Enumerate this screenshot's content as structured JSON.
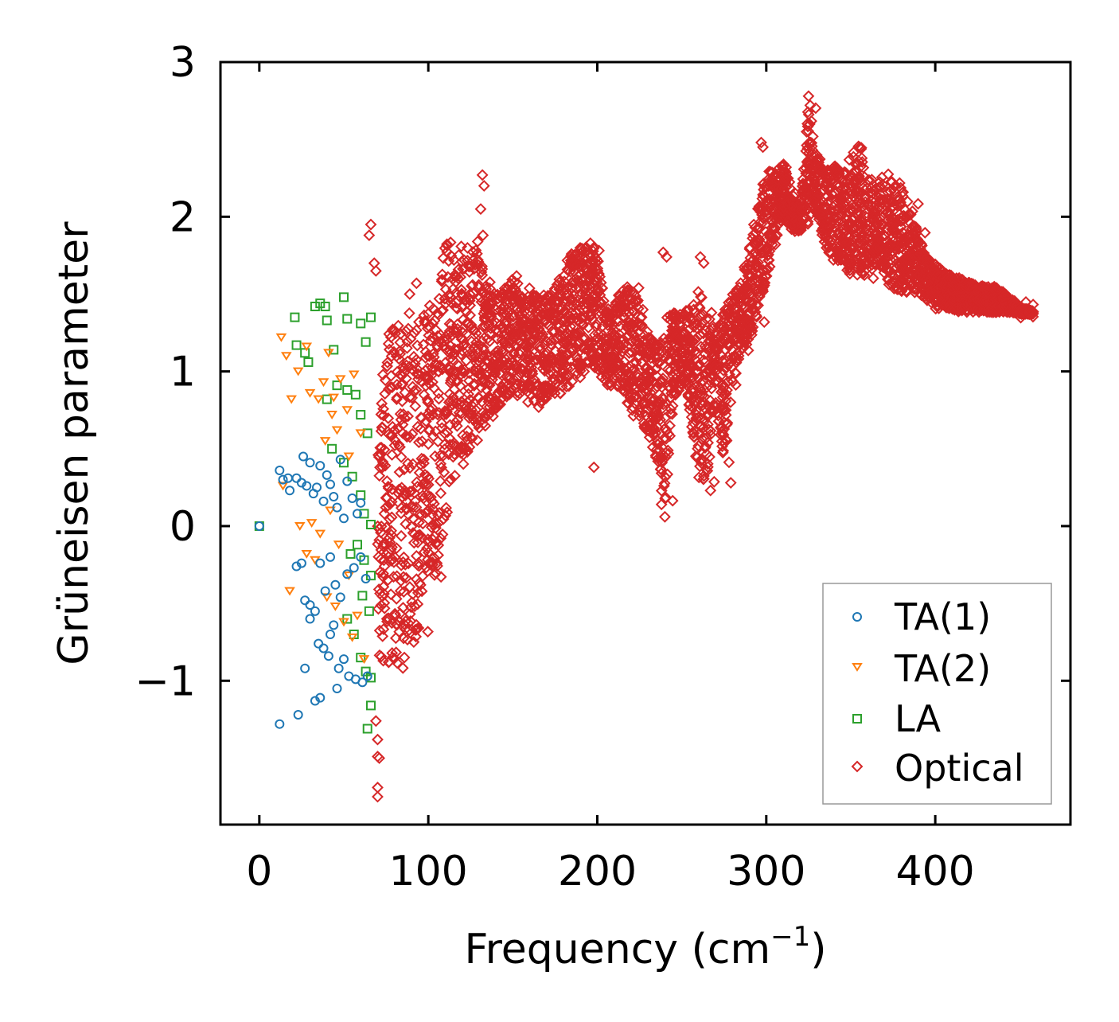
{
  "chart_data": {
    "type": "scatter",
    "title": "",
    "xlabel": "Frequency (cm",
    "xlabel_sup": "−1",
    "xlabel_end": ")",
    "ylabel": "Grüneisen parameter",
    "xlim": [
      -23,
      480
    ],
    "ylim": [
      -1.93,
      3.0
    ],
    "x_ticks": [
      0,
      100,
      200,
      300,
      400
    ],
    "x_tick_labels": [
      "0",
      "100",
      "200",
      "300",
      "400"
    ],
    "y_ticks": [
      -1,
      0,
      1,
      2,
      3
    ],
    "y_tick_labels": [
      "−1",
      "0",
      "1",
      "2",
      "3"
    ],
    "grid": false,
    "legend_position": "bottom-right",
    "series": [
      {
        "name": "TA(1)",
        "marker": "circle",
        "color": "#1f77b4",
        "points": [
          [
            0,
            0
          ],
          [
            12,
            0.36
          ],
          [
            14,
            0.3
          ],
          [
            17,
            0.31
          ],
          [
            18,
            0.23
          ],
          [
            22,
            0.31
          ],
          [
            25,
            0.28
          ],
          [
            26,
            0.45
          ],
          [
            28,
            0.26
          ],
          [
            30,
            0.41
          ],
          [
            32,
            0.21
          ],
          [
            34,
            0.25
          ],
          [
            36,
            0.39
          ],
          [
            38,
            0.16
          ],
          [
            40,
            0.33
          ],
          [
            42,
            0.27
          ],
          [
            44,
            0.19
          ],
          [
            46,
            0.12
          ],
          [
            48,
            0.43
          ],
          [
            50,
            0.05
          ],
          [
            52,
            0.29
          ],
          [
            55,
            0.18
          ],
          [
            58,
            0.08
          ],
          [
            60,
            0.15
          ],
          [
            22,
            -0.26
          ],
          [
            25,
            -0.24
          ],
          [
            27,
            -0.48
          ],
          [
            30,
            -0.51
          ],
          [
            33,
            -0.55
          ],
          [
            36,
            -0.24
          ],
          [
            39,
            -0.42
          ],
          [
            42,
            -0.2
          ],
          [
            45,
            -0.38
          ],
          [
            48,
            -0.46
          ],
          [
            52,
            -0.31
          ],
          [
            56,
            -0.27
          ],
          [
            60,
            -0.2
          ],
          [
            63,
            -0.34
          ],
          [
            35,
            -0.76
          ],
          [
            38,
            -0.79
          ],
          [
            41,
            -0.84
          ],
          [
            44,
            -0.64
          ],
          [
            47,
            -0.92
          ],
          [
            50,
            -0.86
          ],
          [
            53,
            -0.97
          ],
          [
            57,
            -0.99
          ],
          [
            61,
            -1.01
          ],
          [
            64,
            -0.97
          ],
          [
            12,
            -1.28
          ],
          [
            23,
            -1.22
          ],
          [
            27,
            -0.92
          ],
          [
            33,
            -1.13
          ],
          [
            36,
            -1.11
          ],
          [
            46,
            -1.05
          ],
          [
            30,
            -0.6
          ],
          [
            42,
            -0.7
          ]
        ]
      },
      {
        "name": "TA(2)",
        "marker": "triangle-down",
        "color": "#ff7f0e",
        "points": [
          [
            13,
            1.22
          ],
          [
            16,
            1.1
          ],
          [
            19,
            0.82
          ],
          [
            23,
            1.0
          ],
          [
            28,
            1.16
          ],
          [
            30,
            0.86
          ],
          [
            35,
            0.82
          ],
          [
            38,
            0.93
          ],
          [
            41,
            1.12
          ],
          [
            44,
            0.83
          ],
          [
            48,
            0.95
          ],
          [
            52,
            0.75
          ],
          [
            56,
            0.98
          ],
          [
            60,
            0.6
          ],
          [
            14,
            0.26
          ],
          [
            24,
            0.0
          ],
          [
            31,
            0.02
          ],
          [
            36,
            -0.05
          ],
          [
            42,
            0.1
          ],
          [
            47,
            -0.12
          ],
          [
            53,
            -0.32
          ],
          [
            58,
            -0.58
          ],
          [
            18,
            -0.42
          ],
          [
            28,
            -0.18
          ],
          [
            40,
            -0.46
          ],
          [
            45,
            -0.52
          ],
          [
            50,
            -0.62
          ],
          [
            55,
            -0.72
          ],
          [
            62,
            -0.86
          ],
          [
            39,
            0.55
          ],
          [
            46,
            0.62
          ],
          [
            53,
            0.45
          ],
          [
            33,
            -0.22
          ],
          [
            43,
            0.72
          ]
        ]
      },
      {
        "name": "LA",
        "marker": "square",
        "color": "#2ca02c",
        "points": [
          [
            0,
            0
          ],
          [
            21,
            1.35
          ],
          [
            22,
            1.17
          ],
          [
            27,
            1.12
          ],
          [
            29,
            1.06
          ],
          [
            33,
            1.42
          ],
          [
            36,
            1.44
          ],
          [
            39,
            1.42
          ],
          [
            40,
            1.33
          ],
          [
            44,
            1.14
          ],
          [
            50,
            1.48
          ],
          [
            52,
            1.34
          ],
          [
            60,
            1.31
          ],
          [
            63,
            1.19
          ],
          [
            66,
            1.35
          ],
          [
            40,
            0.82
          ],
          [
            46,
            0.91
          ],
          [
            52,
            0.88
          ],
          [
            57,
            0.85
          ],
          [
            60,
            0.72
          ],
          [
            64,
            0.6
          ],
          [
            43,
            0.5
          ],
          [
            50,
            0.41
          ],
          [
            55,
            0.32
          ],
          [
            60,
            0.2
          ],
          [
            62,
            0.08
          ],
          [
            66,
            0.01
          ],
          [
            58,
            -0.12
          ],
          [
            62,
            -0.22
          ],
          [
            66,
            -0.32
          ],
          [
            52,
            -0.6
          ],
          [
            56,
            -0.7
          ],
          [
            60,
            -0.85
          ],
          [
            63,
            -0.94
          ],
          [
            66,
            -0.98
          ],
          [
            66,
            -1.16
          ],
          [
            64,
            -1.31
          ],
          [
            54,
            -0.18
          ],
          [
            61,
            -0.45
          ],
          [
            65,
            -0.55
          ]
        ]
      },
      {
        "name": "Optical",
        "marker": "diamond",
        "color": "#d62728",
        "envelope": [
          [
            70,
            -0.9,
            0.5
          ],
          [
            75,
            -0.9,
            1.3
          ],
          [
            80,
            -0.95,
            1.3
          ],
          [
            85,
            -0.85,
            1.4
          ],
          [
            90,
            -0.8,
            1.3
          ],
          [
            95,
            -0.7,
            1.35
          ],
          [
            100,
            -0.3,
            1.45
          ],
          [
            105,
            -0.35,
            1.6
          ],
          [
            110,
            0.0,
            1.9
          ],
          [
            115,
            0.3,
            1.85
          ],
          [
            120,
            0.4,
            1.8
          ],
          [
            125,
            0.5,
            1.75
          ],
          [
            130,
            0.6,
            1.9
          ],
          [
            135,
            0.7,
            1.6
          ],
          [
            140,
            0.75,
            1.5
          ],
          [
            145,
            0.8,
            1.55
          ],
          [
            150,
            0.85,
            1.65
          ],
          [
            155,
            0.8,
            1.6
          ],
          [
            160,
            0.85,
            1.5
          ],
          [
            165,
            0.75,
            1.5
          ],
          [
            170,
            0.8,
            1.5
          ],
          [
            175,
            0.85,
            1.55
          ],
          [
            180,
            0.85,
            1.7
          ],
          [
            185,
            0.9,
            1.8
          ],
          [
            190,
            0.95,
            1.8
          ],
          [
            195,
            1.05,
            1.85
          ],
          [
            200,
            1.0,
            1.8
          ],
          [
            205,
            0.9,
            1.4
          ],
          [
            210,
            0.9,
            1.45
          ],
          [
            215,
            0.85,
            1.55
          ],
          [
            220,
            0.7,
            1.55
          ],
          [
            225,
            0.7,
            1.45
          ],
          [
            230,
            0.55,
            1.25
          ],
          [
            235,
            0.4,
            1.2
          ],
          [
            240,
            0.1,
            1.35
          ],
          [
            245,
            0.8,
            1.4
          ],
          [
            250,
            0.9,
            1.4
          ],
          [
            255,
            0.7,
            1.4
          ],
          [
            260,
            0.3,
            1.55
          ],
          [
            265,
            0.25,
            1.4
          ],
          [
            270,
            0.8,
            1.3
          ],
          [
            275,
            0.35,
            1.4
          ],
          [
            280,
            0.9,
            1.5
          ],
          [
            285,
            1.1,
            1.6
          ],
          [
            290,
            1.2,
            1.8
          ],
          [
            295,
            1.3,
            2.1
          ],
          [
            300,
            1.6,
            2.3
          ],
          [
            305,
            1.8,
            2.3
          ],
          [
            310,
            2.0,
            2.35
          ],
          [
            315,
            1.9,
            2.2
          ],
          [
            320,
            1.9,
            2.0
          ],
          [
            325,
            2.0,
            2.75
          ],
          [
            330,
            2.0,
            2.4
          ],
          [
            335,
            1.8,
            2.3
          ],
          [
            340,
            1.7,
            2.35
          ],
          [
            345,
            1.7,
            2.3
          ],
          [
            350,
            1.6,
            2.4
          ],
          [
            355,
            1.6,
            2.5
          ],
          [
            360,
            1.6,
            2.3
          ],
          [
            365,
            1.7,
            2.2
          ],
          [
            370,
            1.6,
            2.3
          ],
          [
            375,
            1.5,
            2.25
          ],
          [
            380,
            1.5,
            2.2
          ],
          [
            385,
            1.5,
            2.1
          ],
          [
            390,
            1.5,
            1.9
          ],
          [
            395,
            1.45,
            1.75
          ],
          [
            400,
            1.4,
            1.7
          ],
          [
            405,
            1.4,
            1.65
          ],
          [
            410,
            1.4,
            1.62
          ],
          [
            415,
            1.38,
            1.6
          ],
          [
            420,
            1.38,
            1.58
          ],
          [
            425,
            1.38,
            1.56
          ],
          [
            430,
            1.38,
            1.55
          ],
          [
            435,
            1.38,
            1.55
          ],
          [
            440,
            1.38,
            1.52
          ],
          [
            445,
            1.38,
            1.48
          ],
          [
            450,
            1.37,
            1.42
          ],
          [
            455,
            1.37,
            1.4
          ],
          [
            458,
            1.37,
            1.39
          ]
        ],
        "outliers": [
          [
            69,
            -1.26
          ],
          [
            70,
            -1.38
          ],
          [
            70,
            -1.49
          ],
          [
            71,
            -1.5
          ],
          [
            70,
            -1.69
          ],
          [
            70,
            -1.75
          ],
          [
            66,
            1.95
          ],
          [
            65,
            1.88
          ],
          [
            68,
            1.7
          ],
          [
            69,
            1.65
          ],
          [
            132,
            2.27
          ],
          [
            133,
            2.2
          ],
          [
            131,
            2.05
          ],
          [
            198,
            0.38
          ],
          [
            239,
            1.77
          ],
          [
            241,
            1.74
          ],
          [
            261,
            1.74
          ],
          [
            263,
            1.7
          ],
          [
            297,
            2.48
          ],
          [
            298,
            2.45
          ],
          [
            325,
            2.78
          ],
          [
            326,
            2.72
          ],
          [
            89,
            1.5
          ],
          [
            93,
            1.57
          ],
          [
            267,
            0.23
          ],
          [
            279,
            0.28
          ],
          [
            240,
            0.06
          ],
          [
            238,
            0.14
          ]
        ]
      }
    ]
  }
}
